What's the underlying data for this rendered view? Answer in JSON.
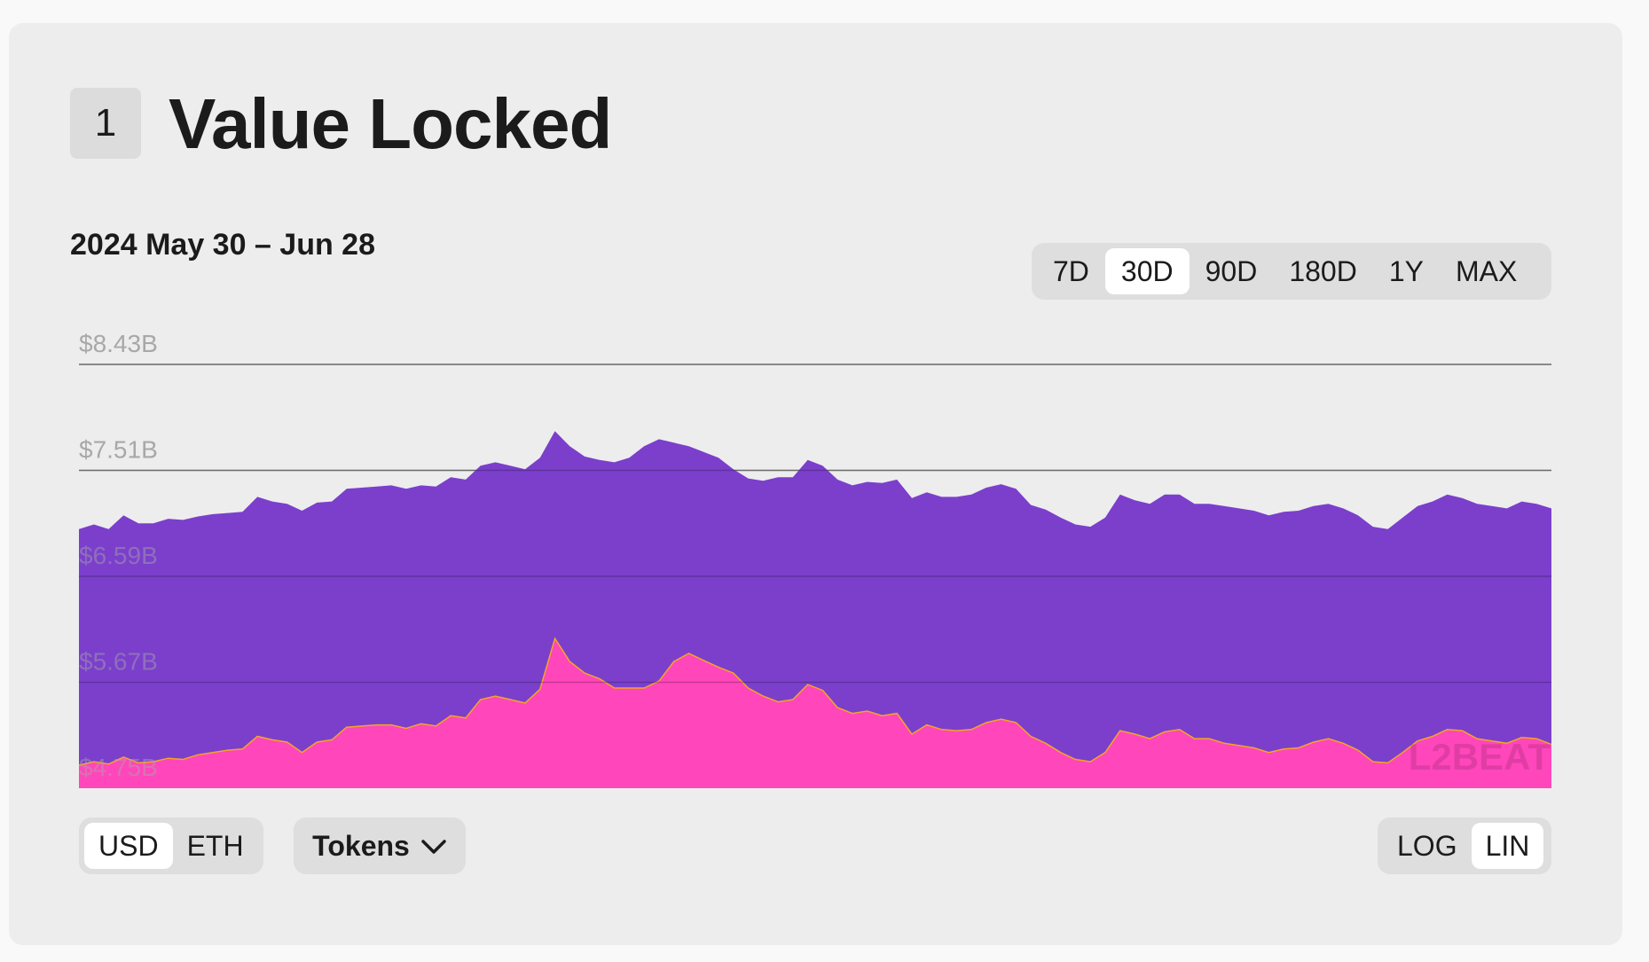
{
  "header": {
    "section_number": "1",
    "title": "Value Locked"
  },
  "date_range": "2024 May 30 – Jun 28",
  "range_selector": {
    "options": [
      "7D",
      "30D",
      "90D",
      "180D",
      "1Y",
      "MAX"
    ],
    "selected": "30D"
  },
  "controls": {
    "currency": {
      "options": [
        "USD",
        "ETH"
      ],
      "selected": "USD"
    },
    "tokens_label": "Tokens",
    "scale": {
      "options": [
        "LOG",
        "LIN"
      ],
      "selected": "LIN"
    }
  },
  "watermark": "L2BEAT",
  "colors": {
    "total_fill": "#7b3fcc",
    "lower_fill": "#ff46bb",
    "lower_stroke": "#f4a623",
    "grid": "#8a8a8a",
    "axis_label": "#a8a8a8"
  },
  "chart_data": {
    "type": "area",
    "stacked": false,
    "x_range": [
      "2024-05-30",
      "2024-06-28"
    ],
    "grid": true,
    "ylim": [
      4.75,
      8.43
    ],
    "yticks": [
      "$8.43B",
      "$7.51B",
      "$6.59B",
      "$5.67B",
      "$4.75B"
    ],
    "ytick_values": [
      8.43,
      7.51,
      6.59,
      5.67,
      4.75
    ],
    "series": [
      {
        "values": [
          7.0,
          7.04,
          7.0,
          7.12,
          7.05,
          7.05,
          7.09,
          7.08,
          7.11,
          7.13,
          7.14,
          7.15,
          7.28,
          7.24,
          7.22,
          7.16,
          7.23,
          7.24,
          7.35,
          7.36,
          7.37,
          7.38,
          7.35,
          7.38,
          7.37,
          7.45,
          7.43,
          7.55,
          7.58,
          7.55,
          7.52,
          7.62,
          7.85,
          7.72,
          7.63,
          7.6,
          7.58,
          7.62,
          7.72,
          7.78,
          7.75,
          7.72,
          7.67,
          7.62,
          7.52,
          7.44,
          7.42,
          7.45,
          7.45,
          7.6,
          7.55,
          7.43,
          7.38,
          7.41,
          7.4,
          7.43,
          7.27,
          7.32,
          7.28,
          7.28,
          7.3,
          7.36,
          7.39,
          7.35,
          7.21,
          7.17,
          7.1,
          7.04,
          7.02,
          7.1,
          7.3,
          7.25,
          7.22,
          7.3,
          7.3,
          7.22,
          7.22,
          7.2,
          7.18,
          7.16,
          7.12,
          7.15,
          7.16,
          7.2,
          7.22,
          7.18,
          7.12,
          7.02,
          7.0,
          7.1,
          7.2,
          7.24,
          7.3,
          7.27,
          7.22,
          7.2,
          7.18,
          7.24,
          7.22,
          7.18
        ]
      },
      {
        "values": [
          4.95,
          4.98,
          4.96,
          5.02,
          4.97,
          4.98,
          5.01,
          5.0,
          5.04,
          5.06,
          5.08,
          5.09,
          5.2,
          5.17,
          5.15,
          5.06,
          5.15,
          5.17,
          5.28,
          5.29,
          5.3,
          5.3,
          5.27,
          5.31,
          5.29,
          5.38,
          5.36,
          5.52,
          5.55,
          5.52,
          5.49,
          5.61,
          6.05,
          5.85,
          5.75,
          5.7,
          5.62,
          5.62,
          5.62,
          5.68,
          5.85,
          5.92,
          5.86,
          5.8,
          5.75,
          5.62,
          5.55,
          5.5,
          5.52,
          5.65,
          5.6,
          5.45,
          5.4,
          5.42,
          5.38,
          5.4,
          5.22,
          5.3,
          5.26,
          5.25,
          5.26,
          5.32,
          5.35,
          5.32,
          5.2,
          5.14,
          5.06,
          5.0,
          4.98,
          5.06,
          5.25,
          5.22,
          5.18,
          5.24,
          5.26,
          5.18,
          5.18,
          5.14,
          5.12,
          5.1,
          5.06,
          5.09,
          5.1,
          5.15,
          5.18,
          5.14,
          5.08,
          4.98,
          4.97,
          5.06,
          5.16,
          5.2,
          5.26,
          5.25,
          5.18,
          5.16,
          5.14,
          5.19,
          5.18,
          5.13
        ]
      }
    ]
  }
}
